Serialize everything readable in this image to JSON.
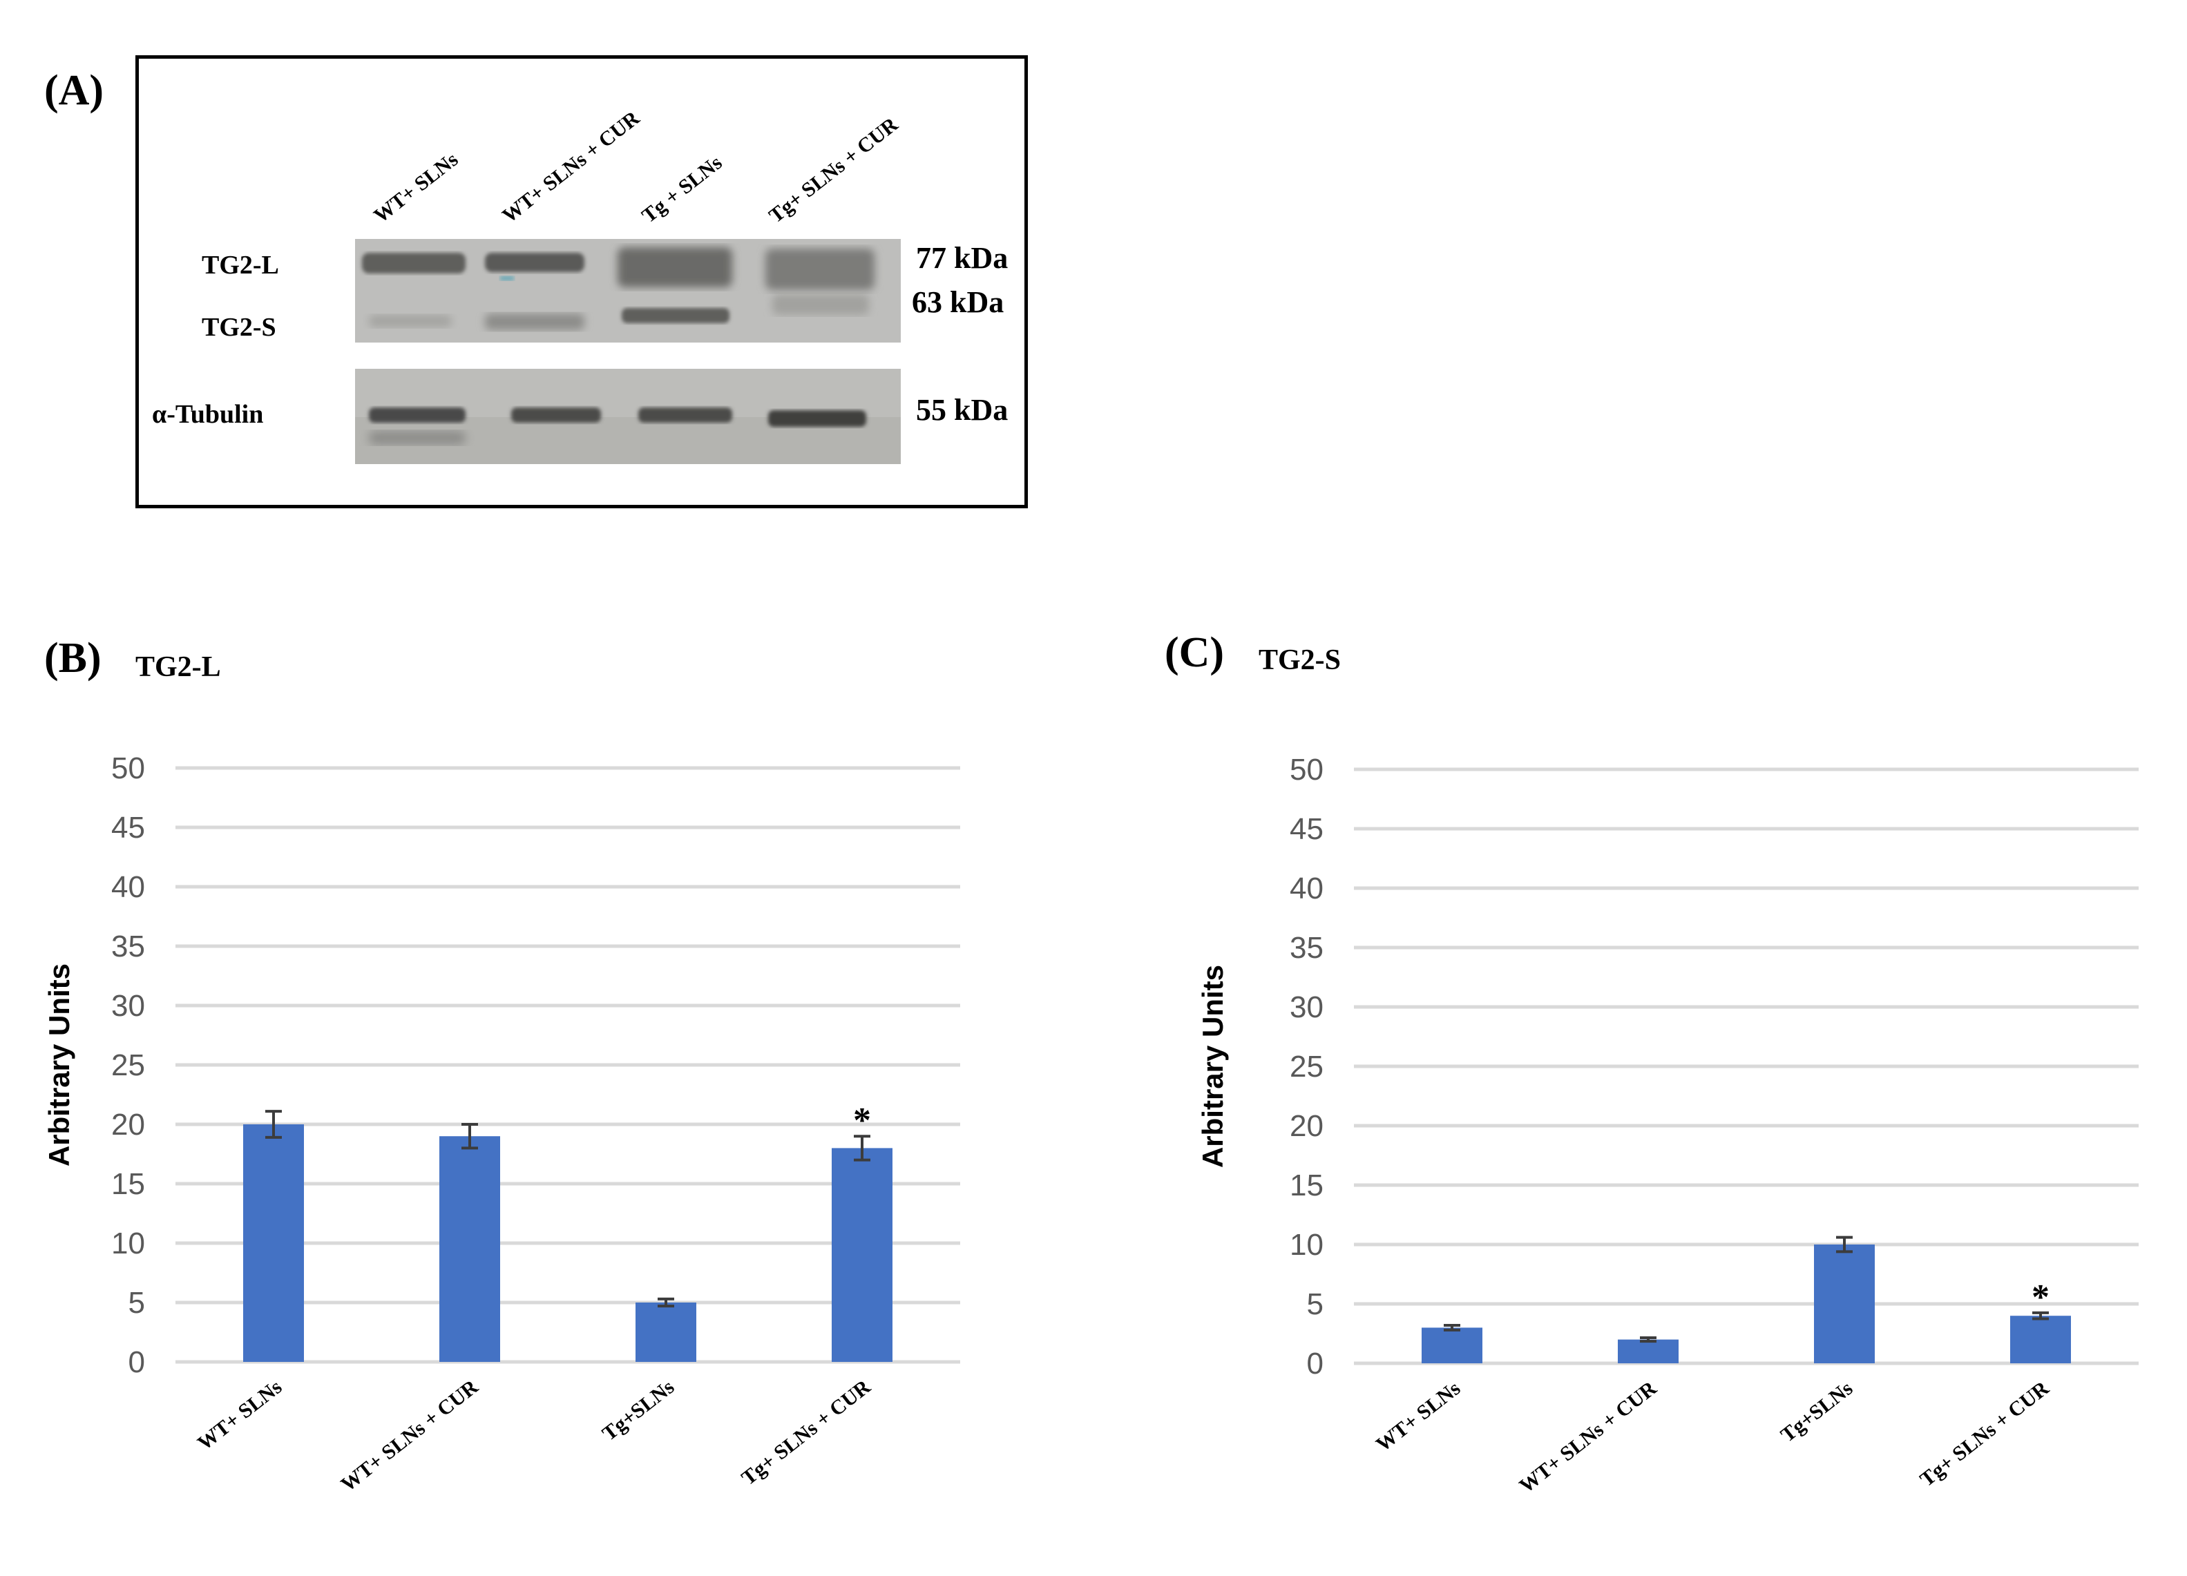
{
  "panels": {
    "a_label": "(A)",
    "b_label": "(B)",
    "c_label": "(C)"
  },
  "blot": {
    "lanes": [
      "WT+ SLNs",
      "WT+ SLNs + CUR",
      "Tg + SLNs",
      "Tg+ SLNs + CUR"
    ],
    "bands": {
      "tg2l": "TG2-L",
      "tg2s": "TG2-S",
      "tubulin": "α-Tubulin"
    },
    "markers": {
      "m77": "77 kDa",
      "m63": "63 kDa",
      "m55": "55 kDa"
    }
  },
  "chart_data": [
    {
      "type": "bar",
      "title": "TG2-L",
      "ylabel": "Arbitrary Units",
      "xlabel": "",
      "ylim": [
        0,
        50
      ],
      "yticks": [
        0,
        5,
        10,
        15,
        20,
        25,
        30,
        35,
        40,
        45,
        50
      ],
      "grid": true,
      "categories": [
        "WT+ SLNs",
        "WT+ SLNs + CUR",
        "Tg+SLNs",
        "Tg+ SLNs + CUR"
      ],
      "values": [
        20,
        19,
        5,
        18
      ],
      "errors": [
        1.1,
        1.0,
        0.3,
        1.0
      ],
      "annotations": [
        "",
        "",
        "",
        "*"
      ],
      "bar_color": "#4472c4"
    },
    {
      "type": "bar",
      "title": "TG2-S",
      "ylabel": "Arbitrary Units",
      "xlabel": "",
      "ylim": [
        0,
        50
      ],
      "yticks": [
        0,
        5,
        10,
        15,
        20,
        25,
        30,
        35,
        40,
        45,
        50
      ],
      "grid": true,
      "categories": [
        "WT+ SLNs",
        "WT+ SLNs + CUR",
        "Tg+SLNs",
        "Tg+ SLNs + CUR"
      ],
      "values": [
        3,
        2,
        10,
        4
      ],
      "errors": [
        0.2,
        0.15,
        0.6,
        0.25
      ],
      "annotations": [
        "",
        "",
        "",
        "*"
      ],
      "bar_color": "#4472c4"
    }
  ]
}
